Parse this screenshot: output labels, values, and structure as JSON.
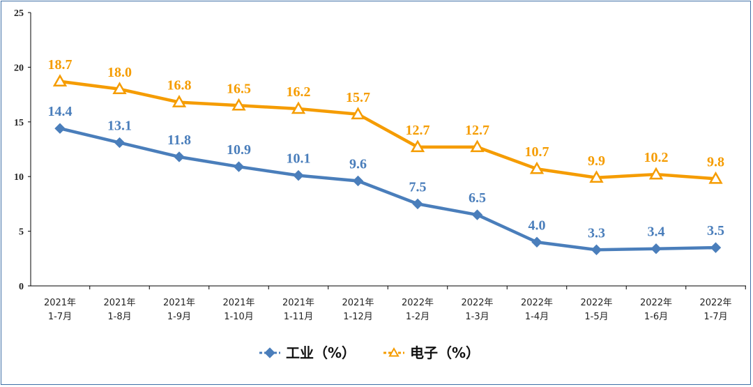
{
  "chart_data": {
    "type": "line",
    "categories": [
      [
        "2021年",
        "1-7月"
      ],
      [
        "2021年",
        "1-8月"
      ],
      [
        "2021年",
        "1-9月"
      ],
      [
        "2021年",
        "1-10月"
      ],
      [
        "2021年",
        "1-11月"
      ],
      [
        "2021年",
        "1-12月"
      ],
      [
        "2022年",
        "1-2月"
      ],
      [
        "2022年",
        "1-3月"
      ],
      [
        "2022年",
        "1-4月"
      ],
      [
        "2022年",
        "1-5月"
      ],
      [
        "2022年",
        "1-6月"
      ],
      [
        "2022年",
        "1-7月"
      ]
    ],
    "series": [
      {
        "name": "工业（%）",
        "values": [
          14.4,
          13.1,
          11.8,
          10.9,
          10.1,
          9.6,
          7.5,
          6.5,
          4.0,
          3.3,
          3.4,
          3.5
        ],
        "labels": [
          "14.4",
          "13.1",
          "11.8",
          "10.9",
          "10.1",
          "9.6",
          "7.5",
          "6.5",
          "4.0",
          "3.3",
          "3.4",
          "3.5"
        ],
        "color": "#4a7ebb",
        "marker": "diamond"
      },
      {
        "name": "电子（%）",
        "values": [
          18.7,
          18.0,
          16.8,
          16.5,
          16.2,
          15.7,
          12.7,
          12.7,
          10.7,
          9.9,
          10.2,
          9.8
        ],
        "labels": [
          "18.7",
          "18.0",
          "16.8",
          "16.5",
          "16.2",
          "15.7",
          "12.7",
          "12.7",
          "10.7",
          "9.9",
          "10.2",
          "9.8"
        ],
        "color": "#f59c00",
        "marker": "triangle"
      }
    ],
    "ylim": [
      0,
      25
    ],
    "yticks": [
      0,
      5,
      10,
      15,
      20,
      25
    ],
    "title": "",
    "xlabel": "",
    "ylabel": "",
    "grid": false,
    "legend": "bottom-center"
  }
}
